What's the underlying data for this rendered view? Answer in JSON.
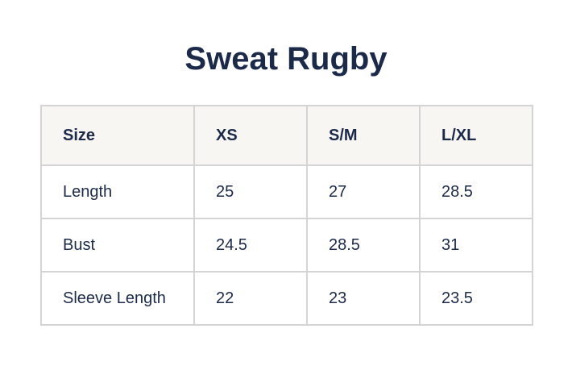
{
  "title": "Sweat Rugby",
  "table": {
    "headers": [
      "Size",
      "XS",
      "S/M",
      "L/XL"
    ],
    "rows": [
      [
        "Length",
        "25",
        "27",
        "28.5"
      ],
      [
        "Bust",
        "24.5",
        "28.5",
        "31"
      ],
      [
        "Sleeve Length",
        "22",
        "23",
        "23.5"
      ]
    ]
  }
}
